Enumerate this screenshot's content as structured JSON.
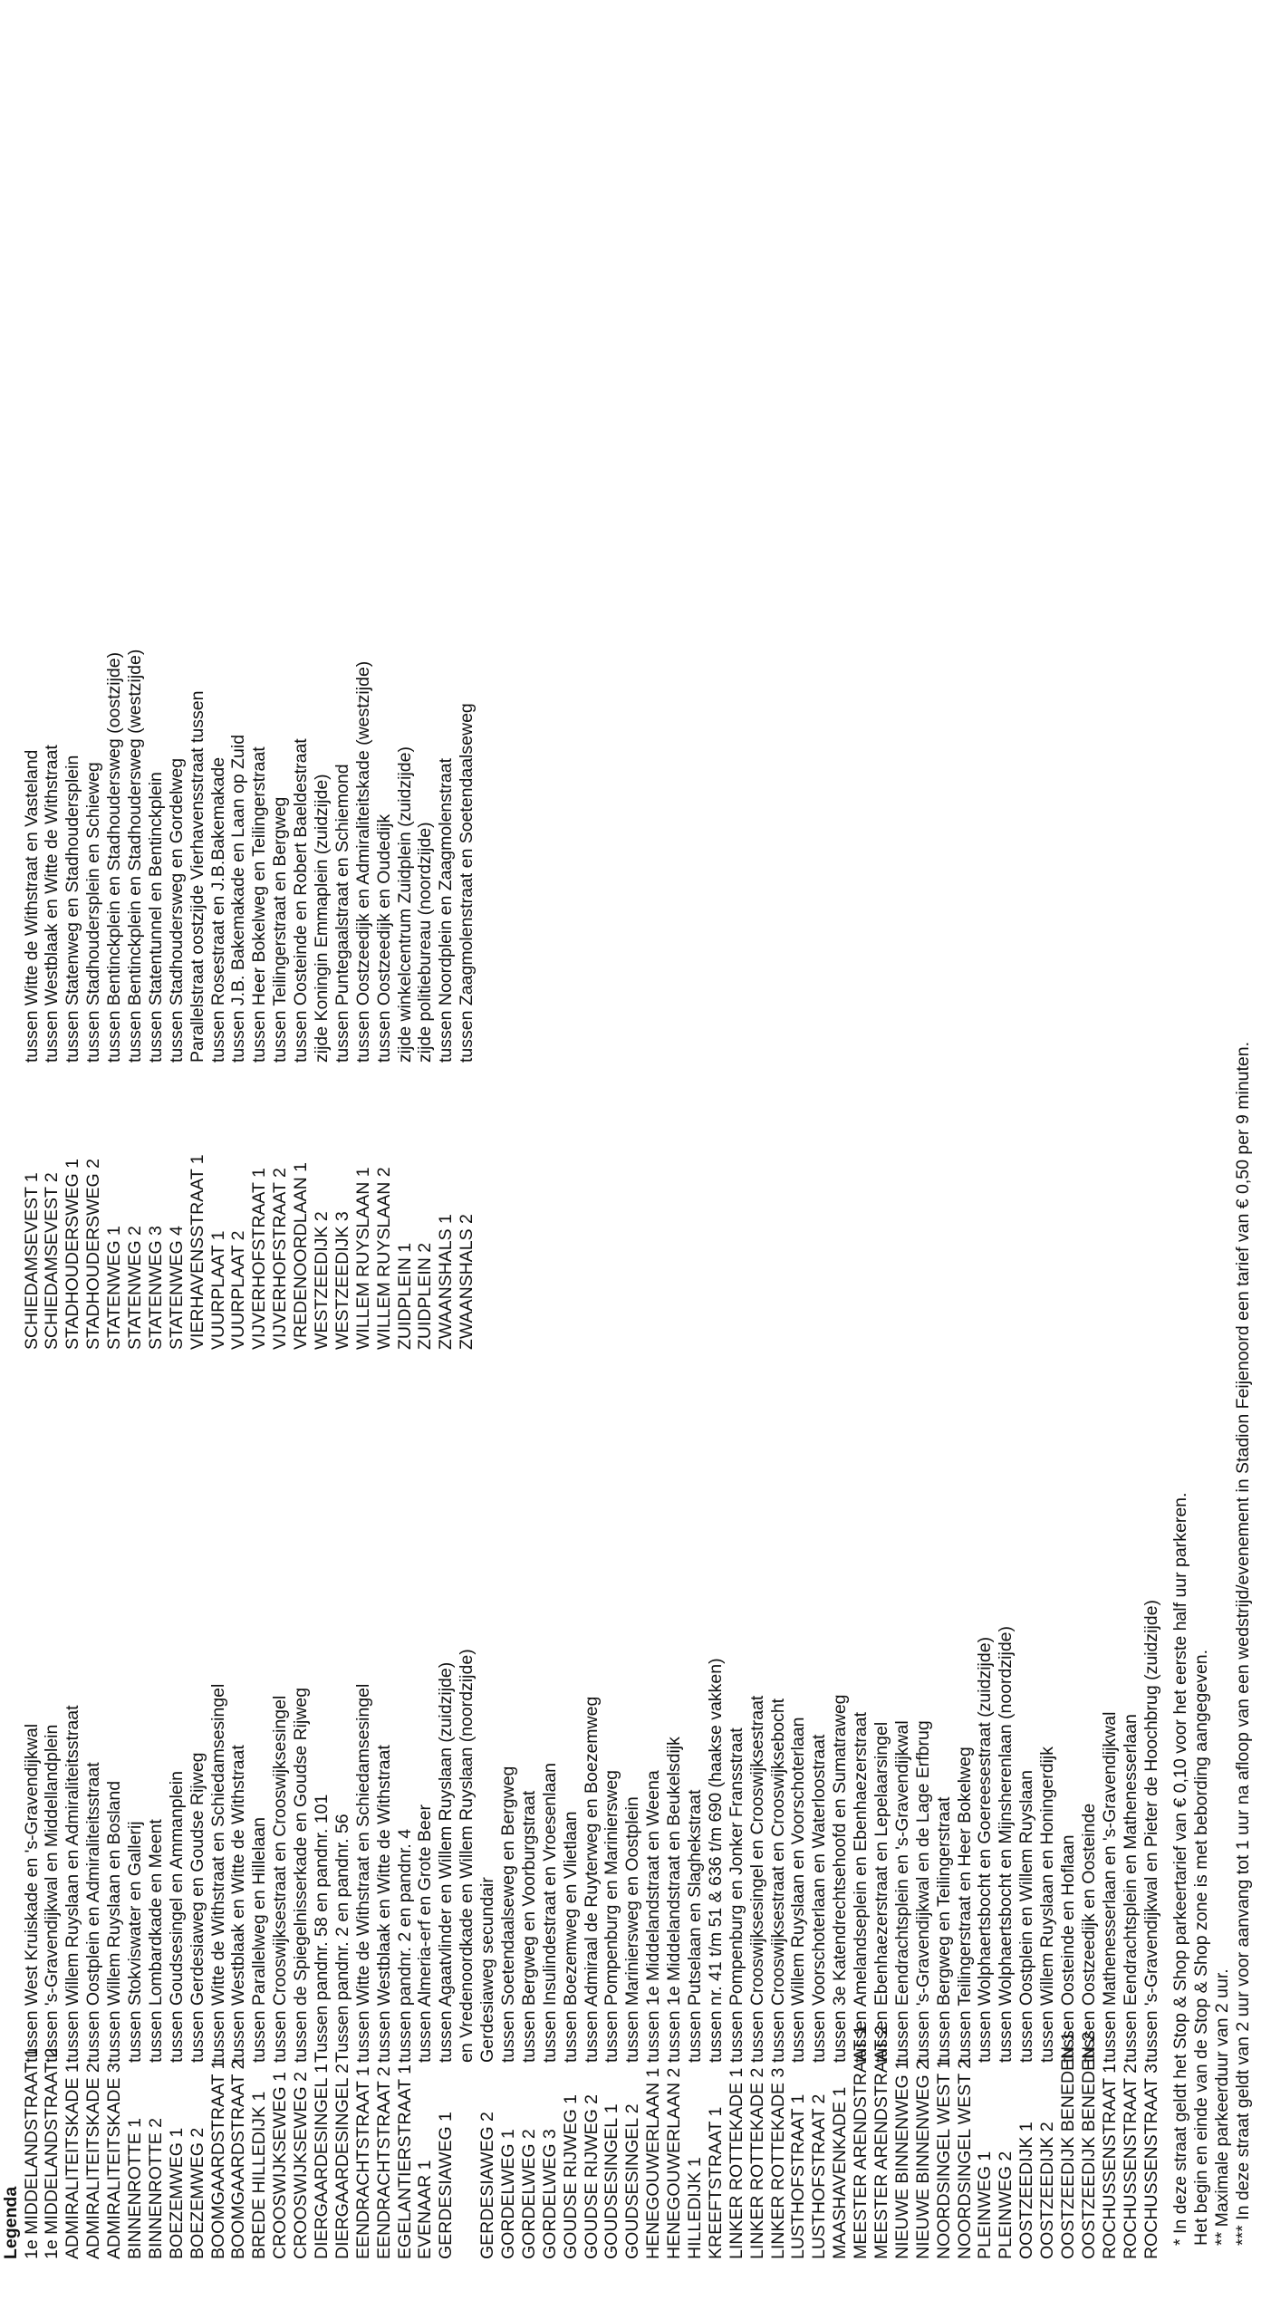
{
  "legend": {
    "title": "Legenda",
    "column1": [
      {
        "name": "1e MIDDELANDSTRAAT 1",
        "desc": "tussen West Kruiskade en 's-Gravendijkwal"
      },
      {
        "name": "1e MIDDELANDSTRAAT 2",
        "desc": "tussen 's-Gravendijkwal en Middellandplein"
      },
      {
        "name": "ADMIRALITEITSKADE 1",
        "desc": "tussen Willem Ruyslaan en Admiraliteitsstraat"
      },
      {
        "name": "ADMIRALITEITSKADE 2",
        "desc": "tussen Oostplein en Admiraliteitsstraat"
      },
      {
        "name": "ADMIRALITEITSKADE 3",
        "desc": "tussen Willem Ruyslaan en Bosland"
      },
      {
        "name": "BINNENROTTE 1",
        "desc": "tussen Stokviswater en Gallerij"
      },
      {
        "name": "BINNENROTTE 2",
        "desc": "tussen Lombardkade en Meent"
      },
      {
        "name": "BOEZEMWEG 1",
        "desc": "tussen Goudsesingel en Ammanplein"
      },
      {
        "name": "BOEZEMWEG 2",
        "desc": "tussen Gerdesiaweg en Goudse Rijweg"
      },
      {
        "name": "BOOMGAARDSTRAAT 1",
        "desc": "tussen Witte de Withstraat en Schiedamsesingel"
      },
      {
        "name": "BOOMGAARDSTRAAT 2",
        "desc": "tussen Westblaak en Witte de Withstraat"
      },
      {
        "name": "BREDE HILLEDIJK 1",
        "desc": "tussen Parallelweg en Hillelaan"
      },
      {
        "name": "CROOSWIJKSEWEG 1",
        "desc": "tussen Crooswijksestraat en Crooswijksesingel"
      },
      {
        "name": "CROOSWIJKSEWEG 2",
        "desc": "tussen de Spiegelnisserkade en Goudse Rijweg"
      },
      {
        "name": "DIERGAARDESINGEL 1",
        "desc": "Tussen pandnr. 58 en pandnr. 101"
      },
      {
        "name": "DIERGAARDESINGEL 2",
        "desc": "Tussen pandnr. 2 en pandnr. 56"
      },
      {
        "name": "EENDRACHTSTRAAT 1",
        "desc": "tussen Witte de Withstraat en Schiedamsesingel"
      },
      {
        "name": "EENDRACHTSTRAAT 2",
        "desc": "tussen Westblaak en Witte de Withstraat"
      },
      {
        "name": "EGELANTIERSTRAAT 1",
        "desc": "tussen pandnr. 2 en pandnr. 4"
      },
      {
        "name": "EVENAAR 1",
        "desc": "tussen Almeria-erf en Grote Beer"
      },
      {
        "name": "GERDESIAWEG 1",
        "desc": "tussen Agaatvlinder en Willem Ruyslaan (zuidzijde)"
      },
      {
        "name": "",
        "desc": "en Vredenoordkade en Willem Ruyslaan (noordzijde)"
      },
      {
        "name": "GERDESIAWEG 2",
        "desc": "Gerdesiaweg secundair"
      },
      {
        "name": "GORDELWEG 1",
        "desc": "tussen Soetendaalseweg en Bergweg"
      },
      {
        "name": "GORDELWEG 2",
        "desc": "tussen Bergweg en Voorburgstraat"
      },
      {
        "name": "GORDELWEG 3",
        "desc": "tussen Insulindestraat en Vroesenlaan"
      },
      {
        "name": "GOUDSE RIJWEG 1",
        "desc": "tussen Boezemweg en Vlietlaan"
      },
      {
        "name": "GOUDSE RIJWEG 2",
        "desc": "tussen Admiraal de Ruyterweg en Boezemweg"
      },
      {
        "name": "GOUDSESINGEL 1",
        "desc": "tussen Pompenburg en Mariniersweg"
      },
      {
        "name": "GOUDSESINGEL 2",
        "desc": "tussen Mariniersweg en Oostplein"
      },
      {
        "name": "HENEGOUWERLAAN 1",
        "desc": "tussen 1e Middelandstraat en Weena"
      },
      {
        "name": "HENEGOUWERLAAN 2",
        "desc": "tussen 1e Middelandstraat en Beukelsdijk"
      },
      {
        "name": "HILLEDIJK 1",
        "desc": "tussen Putselaan en Slaghekstraat"
      },
      {
        "name": "KREEFTSTRAAT 1",
        "desc": "tussen nr. 41 t/m 51 & 636 t/m 690 (haakse vakken)"
      },
      {
        "name": "LINKER ROTTEKADE 1",
        "desc": "tussen Pompenburg en Jonker Fransstraat"
      },
      {
        "name": "LINKER ROTTEKADE 2",
        "desc": "tussen Crooswijksesingel en Crooswijksestraat"
      },
      {
        "name": "LINKER ROTTEKADE 3",
        "desc": "tussen Crooswijksestraat en Crooswijksebocht"
      },
      {
        "name": "LUSTHOFSTRAAT 1",
        "desc": "tussen Willem Ruyslaan en Voorschoterlaan"
      },
      {
        "name": "LUSTHOFSTRAAT 2",
        "desc": "tussen Voorschoterlaan en Waterloostraat"
      },
      {
        "name": "MAASHAVENKADE 1",
        "desc": "tussen 3e Katendrechtsehoofd en Sumatraweg"
      },
      {
        "name": "MEESTER ARENDSTRAAT 1",
        "desc": "tussen Amelandseplein en Ebenhaezerstraat"
      },
      {
        "name": "MEESTER ARENDSTRAAT 2",
        "desc": "tussen Ebenhaezerstraat en Lepelaarsingel"
      },
      {
        "name": "NIEUWE BINNENWEG 1",
        "desc": "tussen Eendrachtsplein en 's-Gravendijkwal"
      },
      {
        "name": "NIEUWE BINNENWEG 2",
        "desc": "tussen 's-Gravendijkwal en de Lage Erfbrug"
      },
      {
        "name": "NOORDSINGEL WEST 1",
        "desc": "tussen Bergweg en Teilingerstraat"
      },
      {
        "name": "NOORDSINGEL WEST 2",
        "desc": "tussen Teilingerstraat en Heer Bokelweg"
      },
      {
        "name": "PLEINWEG 1",
        "desc": "tussen Wolphaertsbocht en Goereesestraat (zuidzijde)"
      },
      {
        "name": "PLEINWEG 2",
        "desc": "tussen Wolphaertsbocht en Mijnsherenlaan (noordzijde)"
      },
      {
        "name": "OOSTZEEDIJK 1",
        "desc": "tussen Oostplein en Willem Ruyslaan"
      },
      {
        "name": "OOSTZEEDIJK 2",
        "desc": "tussen Willem Ruyslaan en Honingerdijk"
      },
      {
        "name": "OOSTZEEDIJK BENEDEN 1",
        "desc": "tussen Oosteinde en Hoflaan"
      },
      {
        "name": "OOSTZEEDIJK BENEDEN 2",
        "desc": "tussen Oostzeedijk en Oosteinde"
      },
      {
        "name": "ROCHUSSENSTRAAT 1",
        "desc": "tussen Mathenesserlaan en 's-Gravendijkwal"
      },
      {
        "name": "ROCHUSSENSTRAAT 2",
        "desc": "tussen Eendrachtsplein en Mathenesserlaan"
      },
      {
        "name": "ROCHUSSENSTRAAT 3",
        "desc": "tussen 's-Gravendijkwal en Pieter de Hoochbrug (zuidzijde)"
      }
    ],
    "column2": [
      {
        "name": "SCHIEDAMSEVEST 1",
        "desc": "tussen Witte de Withstraat en Vasteland"
      },
      {
        "name": "SCHIEDAMSEVEST 2",
        "desc": "tussen Westblaak en Witte de Withstraat"
      },
      {
        "name": "STADHOUDERSWEG 1",
        "desc": "tussen Statenweg en Stadhoudersplein"
      },
      {
        "name": "STADHOUDERSWEG 2",
        "desc": "tussen Stadhoudersplein en Schieweg"
      },
      {
        "name": "STATENWEG 1",
        "desc": "tussen Bentinckplein en Stadhoudersweg (oostzijde)"
      },
      {
        "name": "STATENWEG 2",
        "desc": "tussen Bentinckplein en Stadhoudersweg (westzijde)"
      },
      {
        "name": "STATENWEG 3",
        "desc": "tussen Statentunnel en Bentinckplein"
      },
      {
        "name": "STATENWEG 4",
        "desc": "tussen Stadhoudersweg en Gordelweg"
      },
      {
        "name": "VIERHAVENSSTRAAT 1",
        "desc": "Parallelstraat oostzijde Vierhavensstraat tussen"
      },
      {
        "name": "VUURPLAAT 1",
        "desc": "tussen Rosestraat en J.B.Bakemakade"
      },
      {
        "name": "VUURPLAAT 2",
        "desc": "tussen J.B. Bakemakade en Laan op Zuid"
      },
      {
        "name": "VIJVERHOFSTRAAT 1",
        "desc": "tussen Heer Bokelweg en Teilingerstraat"
      },
      {
        "name": "VIJVERHOFSTRAAT 2",
        "desc": "tussen Teilingerstraat en Bergweg"
      },
      {
        "name": "VREDENOORDLAAN 1",
        "desc": "tussen Oosteinde en Robert Baeldestraat"
      },
      {
        "name": "WESTZEEDIJK 2",
        "desc": "zijde Koningin Emmaplein (zuidzijde)"
      },
      {
        "name": "WESTZEEDIJK 3",
        "desc": "tussen Puntegaalstraat en Schiemond"
      },
      {
        "name": "WILLEM RUYSLAAN 1",
        "desc": "tussen Oostzeedijk en Admiraliteitskade (westzijde)"
      },
      {
        "name": "WILLEM RUYSLAAN 2",
        "desc": "tussen Oostzeedijk en Oudedijk"
      },
      {
        "name": "ZUIDPLEIN 1",
        "desc": "zijde winkelcentrum Zuidplein (zuidzijde)"
      },
      {
        "name": "ZUIDPLEIN 2",
        "desc": "zijde politiebureau (noordzijde)"
      },
      {
        "name": "ZWAANSHALS 1",
        "desc": "tussen Noordplein en Zaagmolenstraat"
      },
      {
        "name": "ZWAANSHALS 2",
        "desc": "tussen Zaagmolenstraat en Soetendaalseweg"
      }
    ]
  },
  "footnotes": [
    "* In deze straat geldt het Stop & Shop parkeertarief van € 0,10 voor het eerste half uur parkeren.",
    "Het begin en einde van de Stop & Shop zone is met bebording aangegeven.",
    "** Maximale parkeerduur van 2 uur.",
    "*** In deze straat geldt van 2 uur voor aanvang tot 1 uur na afloop van een wedstrijd/evenement in Stadion Feijenoord een tarief van € 0,50 per 9 minuten."
  ]
}
